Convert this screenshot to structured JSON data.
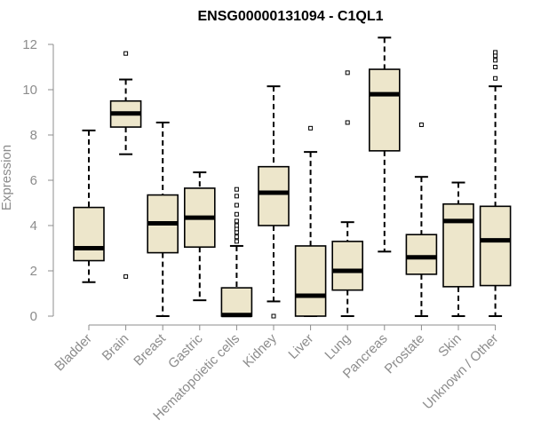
{
  "chart_data": {
    "type": "box",
    "title": "ENSG00000131094 - C1QL1",
    "xlabel": "",
    "ylabel": "Expression",
    "ylim": [
      0,
      12
    ],
    "yticks": [
      0,
      2,
      4,
      6,
      8,
      10,
      12
    ],
    "grid": false,
    "box_fill": "#ede6cb",
    "categories": [
      "Bladder",
      "Brain",
      "Breast",
      "Gastric",
      "Hematopoietic cells",
      "Kidney",
      "Liver",
      "Lung",
      "Pancreas",
      "Prostate",
      "Skin",
      "Unknown / Other"
    ],
    "boxes": [
      {
        "name": "Bladder",
        "whisker_low": 1.5,
        "q1": 2.45,
        "median": 3.0,
        "q3": 4.8,
        "whisker_high": 8.2,
        "outliers": []
      },
      {
        "name": "Brain",
        "whisker_low": 7.15,
        "q1": 8.35,
        "median": 8.95,
        "q3": 9.5,
        "whisker_high": 10.45,
        "outliers": [
          1.75,
          11.6
        ]
      },
      {
        "name": "Breast",
        "whisker_low": 0.0,
        "q1": 2.8,
        "median": 4.1,
        "q3": 5.35,
        "whisker_high": 8.55,
        "outliers": []
      },
      {
        "name": "Gastric",
        "whisker_low": 0.7,
        "q1": 3.05,
        "median": 4.35,
        "q3": 5.65,
        "whisker_high": 6.35,
        "outliers": []
      },
      {
        "name": "Hematopoietic cells",
        "whisker_low": 0.0,
        "q1": 0.0,
        "median": 0.05,
        "q3": 1.25,
        "whisker_high": 3.1,
        "outliers": [
          3.3,
          3.5,
          3.7,
          3.85,
          4.0,
          4.2,
          4.5,
          4.9,
          5.3,
          5.6
        ]
      },
      {
        "name": "Kidney",
        "whisker_low": 0.65,
        "q1": 4.0,
        "median": 5.45,
        "q3": 6.6,
        "whisker_high": 10.15,
        "outliers": [
          0.0
        ]
      },
      {
        "name": "Liver",
        "whisker_low": 0.0,
        "q1": 0.0,
        "median": 0.9,
        "q3": 3.1,
        "whisker_high": 7.25,
        "outliers": [
          8.3
        ]
      },
      {
        "name": "Lung",
        "whisker_low": 0.0,
        "q1": 1.15,
        "median": 2.0,
        "q3": 3.3,
        "whisker_high": 4.15,
        "outliers": [
          8.55,
          10.75
        ]
      },
      {
        "name": "Pancreas",
        "whisker_low": 2.85,
        "q1": 7.3,
        "median": 9.8,
        "q3": 10.9,
        "whisker_high": 12.3,
        "outliers": []
      },
      {
        "name": "Prostate",
        "whisker_low": 0.0,
        "q1": 1.85,
        "median": 2.6,
        "q3": 3.6,
        "whisker_high": 6.15,
        "outliers": [
          8.45
        ]
      },
      {
        "name": "Skin",
        "whisker_low": 0.0,
        "q1": 1.3,
        "median": 4.2,
        "q3": 4.95,
        "whisker_high": 5.9,
        "outliers": []
      },
      {
        "name": "Unknown / Other",
        "whisker_low": 0.0,
        "q1": 1.35,
        "median": 3.35,
        "q3": 4.85,
        "whisker_high": 10.15,
        "outliers": [
          10.5,
          11.0,
          11.3,
          11.5,
          11.65
        ]
      }
    ]
  }
}
